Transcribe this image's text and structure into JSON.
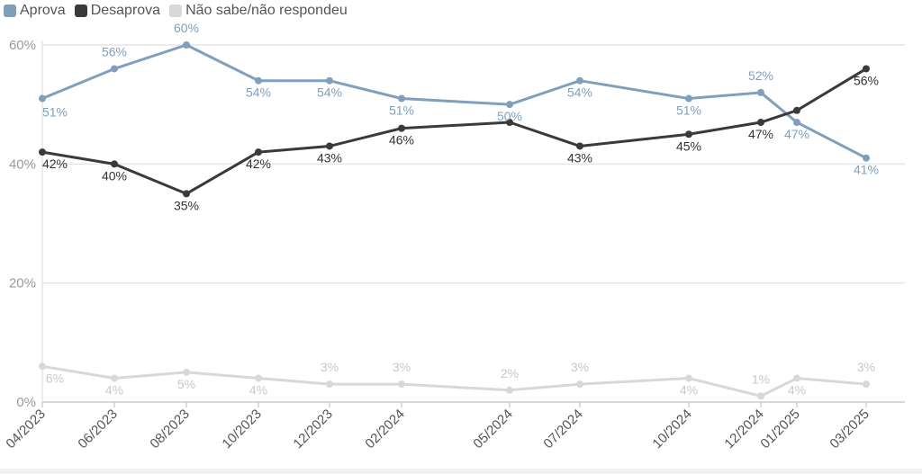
{
  "legend": [
    {
      "label": "Aprova",
      "color": "#7f9fbc"
    },
    {
      "label": "Desaprova",
      "color": "#3a3a3a"
    },
    {
      "label": "Não sabe/não respondeu",
      "color": "#d8d8d8"
    }
  ],
  "chart_data": {
    "type": "line",
    "x": [
      "04/2023",
      "06/2023",
      "08/2023",
      "10/2023",
      "12/2023",
      "02/2024",
      "05/2024",
      "07/2024",
      "10/2024",
      "12/2024",
      "01/2025",
      "03/2025"
    ],
    "ylim": [
      0,
      60
    ],
    "yticks": [
      "0%",
      "20%",
      "40%",
      "60%"
    ],
    "ytick_values": [
      0,
      20,
      40,
      60
    ],
    "grid": true,
    "legend_position": "top-left",
    "series": [
      {
        "name": "Aprova",
        "color": "#7f9fbc",
        "values": [
          51,
          56,
          60,
          54,
          54,
          51,
          50,
          54,
          51,
          52,
          47,
          41
        ],
        "labels": [
          "51%",
          "56%",
          "60%",
          "54%",
          "54%",
          "51%",
          "50%",
          "54%",
          "51%",
          "52%",
          "47%",
          "41%"
        ]
      },
      {
        "name": "Desaprova",
        "color": "#3a3a3a",
        "values": [
          42,
          40,
          35,
          42,
          43,
          46,
          47,
          43,
          45,
          47,
          49,
          56
        ],
        "labels": [
          "42%",
          "40%",
          "35%",
          "42%",
          "43%",
          "46%",
          "",
          "43%",
          "45%",
          "47%",
          "",
          "56%"
        ]
      },
      {
        "name": "Não sabe/não respondeu",
        "color": "#d8d8d8",
        "values": [
          6,
          4,
          5,
          4,
          3,
          3,
          2,
          3,
          4,
          1,
          4,
          3
        ],
        "labels": [
          "6%",
          "4%",
          "5%",
          "4%",
          "3%",
          "3%",
          "2%",
          "3%",
          "4%",
          "1%",
          "4%",
          "3%"
        ]
      }
    ]
  }
}
